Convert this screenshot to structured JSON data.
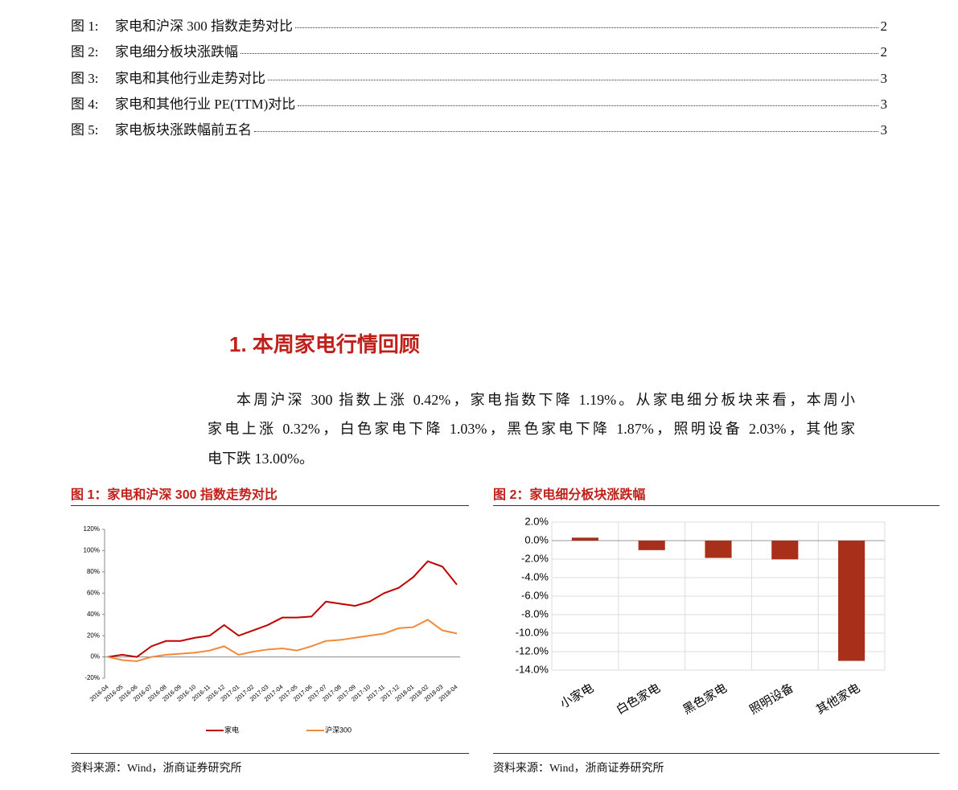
{
  "toc": [
    {
      "label": "图 1:",
      "title": "家电和沪深 300 指数走势对比",
      "page": 2
    },
    {
      "label": "图 2:",
      "title": "家电细分板块涨跌幅",
      "page": 2
    },
    {
      "label": "图 3:",
      "title": "家电和其他行业走势对比",
      "page": 3
    },
    {
      "label": "图 4:",
      "title": "家电和其他行业 PE(TTM)对比",
      "page": 3
    },
    {
      "label": "图 5:",
      "title": "家电板块涨跌幅前五名",
      "page": 3
    }
  ],
  "section": {
    "heading": "1. 本周家电行情回顾",
    "lines": [
      "本周沪深 300 指数上涨 0.42%，家电指数下降 1.19%。从家电细分板块来看，本周小",
      "家电上涨 0.32%，白色家电下降 1.03%，黑色家电下降 1.87%，照明设备 2.03%，其他家",
      "电下跌 13.00%。"
    ]
  },
  "chart_data": [
    {
      "type": "line",
      "title": "图 1：家电和沪深 300 指数走势对比",
      "categories": [
        "2016-04",
        "2016-05",
        "2016-06",
        "2016-07",
        "2016-08",
        "2016-09",
        "2016-10",
        "2016-11",
        "2016-12",
        "2017-01",
        "2017-02",
        "2017-03",
        "2017-04",
        "2017-05",
        "2017-06",
        "2017-07",
        "2017-08",
        "2017-09",
        "2017-10",
        "2017-11",
        "2017-12",
        "2018-01",
        "2018-02",
        "2018-03",
        "2018-04"
      ],
      "series": [
        {
          "name": "家电",
          "color": "#c00000",
          "values": [
            0,
            2,
            0,
            10,
            15,
            15,
            18,
            20,
            30,
            20,
            25,
            30,
            37,
            37,
            38,
            52,
            50,
            48,
            52,
            60,
            65,
            75,
            90,
            85,
            68
          ]
        },
        {
          "name": "沪深300",
          "color": "#f08a3c",
          "values": [
            0,
            -3,
            -4,
            0,
            2,
            3,
            4,
            6,
            10,
            2,
            5,
            7,
            8,
            6,
            10,
            15,
            16,
            18,
            20,
            22,
            27,
            28,
            35,
            25,
            22
          ]
        }
      ],
      "ylim": [
        -20,
        120
      ],
      "yticks": [
        {
          "value": -20,
          "label": "-20%"
        },
        {
          "value": 0,
          "label": "0%"
        },
        {
          "value": 20,
          "label": "20%"
        },
        {
          "value": 40,
          "label": "40%"
        },
        {
          "value": 60,
          "label": "60%"
        },
        {
          "value": 80,
          "label": "80%"
        },
        {
          "value": 100,
          "label": "100%"
        },
        {
          "value": 120,
          "label": "120%"
        }
      ],
      "grid": false,
      "source": "资料来源：Wind，浙商证券研究所"
    },
    {
      "type": "bar",
      "title": "图 2：家电细分板块涨跌幅",
      "categories": [
        "小家电",
        "白色家电",
        "黑色家电",
        "照明设备",
        "其他家电"
      ],
      "series": [
        {
          "color": "#a8301a",
          "values": [
            0.32,
            -1.03,
            -1.87,
            -2.03,
            -13.0
          ]
        }
      ],
      "ylim": [
        -14,
        2
      ],
      "yticks": [
        {
          "value": -14,
          "label": "-14.0%"
        },
        {
          "value": -12,
          "label": "-12.0%"
        },
        {
          "value": -10,
          "label": "-10.0%"
        },
        {
          "value": -8,
          "label": "-8.0%"
        },
        {
          "value": -6,
          "label": "-6.0%"
        },
        {
          "value": -4,
          "label": "-4.0%"
        },
        {
          "value": -2,
          "label": "-2.0%"
        },
        {
          "value": 0,
          "label": "0.0%"
        },
        {
          "value": 2,
          "label": "2.0%"
        }
      ],
      "grid": true,
      "source": "资料来源：Wind，浙商证券研究所"
    }
  ]
}
